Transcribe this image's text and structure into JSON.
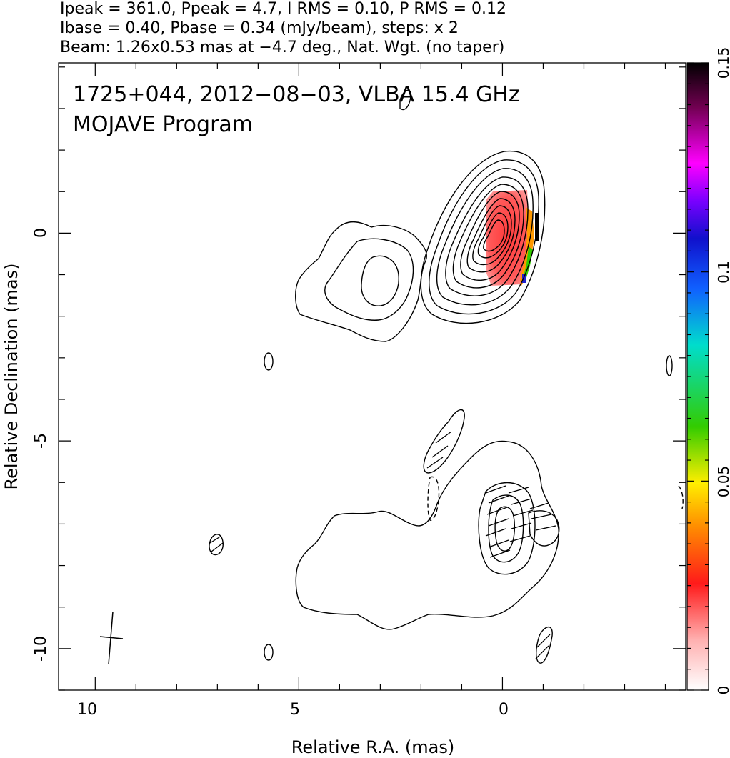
{
  "header": {
    "line1": "Ipeak = 361.0, Ppeak = 4.7, I RMS = 0.10, P RMS = 0.12",
    "line2": "Ibase = 0.40, Pbase = 0.34 (mJy/beam), steps: x 2",
    "line3": "Beam: 1.26x0.53 mas at −4.7 deg., Nat. Wgt. (no taper)"
  },
  "annotation": {
    "title": "1725+044, 2012−08−03, VLBA 15.4 GHz",
    "program": "MOJAVE Program"
  },
  "colorbar": {
    "ticks": [
      "0",
      "0.05",
      "0.1",
      "0.15"
    ],
    "tick_values": [
      0,
      0.05,
      0.1,
      0.15
    ],
    "range": [
      0,
      0.15
    ],
    "colors": [
      "#ffffff",
      "#ff9a9a",
      "#ff2020",
      "#ff8c00",
      "#ffee00",
      "#33cc00",
      "#00ddcc",
      "#1060ff",
      "#1010cc",
      "#7a00ff",
      "#ff00ff",
      "#700050",
      "#000000"
    ]
  },
  "chart_data": {
    "type": "contour",
    "xlabel": "Relative R.A. (mas)",
    "ylabel": "Relative Declination (mas)",
    "xlim": [
      10.9,
      -4.5
    ],
    "ylim": [
      -11.0,
      4.1
    ],
    "x_ticks": [
      10,
      5,
      0
    ],
    "y_ticks": [
      0,
      -5,
      -10
    ],
    "core_center": [
      0.0,
      0.1
    ],
    "core_contour_count": 11,
    "secondary_component": [
      3.0,
      -1.1
    ],
    "southern_component": [
      0.0,
      -7.0
    ],
    "polarization_peak_mJy_per_beam": 4.7,
    "intensity_peak_mJy_per_beam": 361.0
  }
}
